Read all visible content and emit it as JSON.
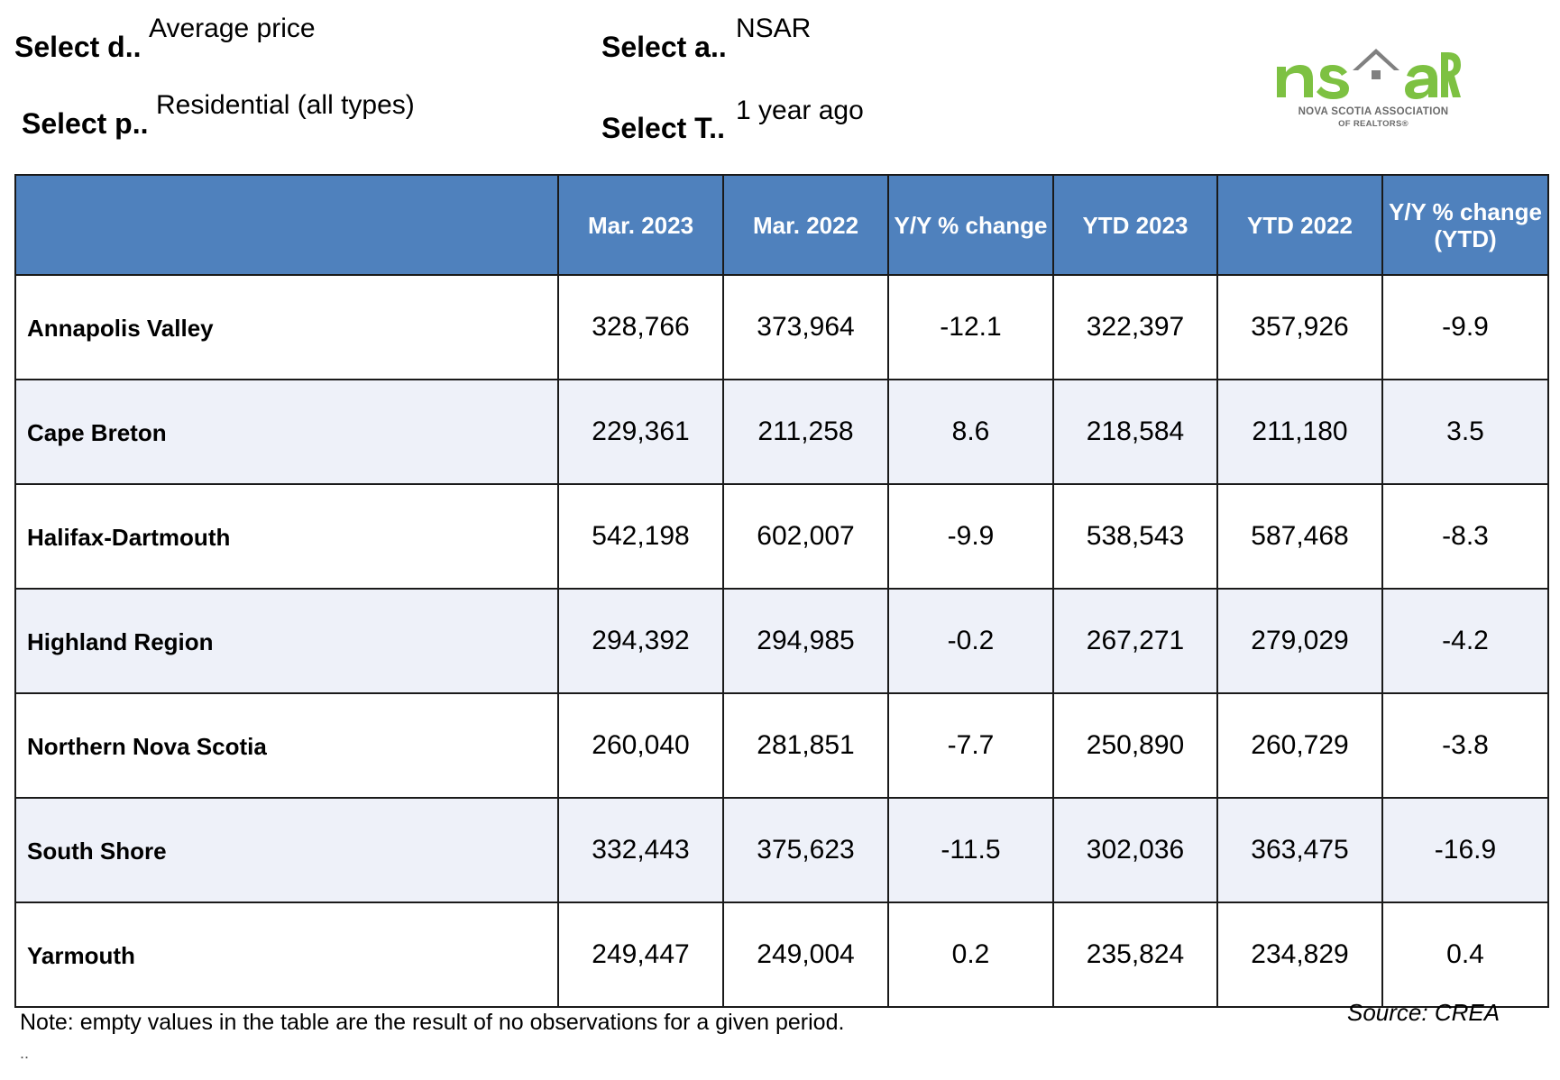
{
  "filters": [
    {
      "label": "Select d..",
      "value": "Average price"
    },
    {
      "label": "Select a..",
      "value": "NSAR"
    },
    {
      "label": "Select p..",
      "value": "Residential (all types)"
    },
    {
      "label": "Select T..",
      "value": "1 year ago"
    }
  ],
  "logo": {
    "word": "nsar",
    "subtitle_line1": "NOVA SCOTIA ASSOCIATION",
    "subtitle_line2": "OF REALTORS®"
  },
  "table": {
    "headers": [
      "",
      "Mar. 2023",
      "Mar. 2022",
      "Y/Y % change",
      "YTD 2023",
      "YTD 2022",
      "Y/Y % change (YTD)"
    ],
    "rows": [
      {
        "region": "Annapolis Valley",
        "cells": [
          "328,766",
          "373,964",
          "-12.1",
          "322,397",
          "357,926",
          "-9.9"
        ]
      },
      {
        "region": "Cape Breton",
        "cells": [
          "229,361",
          "211,258",
          "8.6",
          "218,584",
          "211,180",
          "3.5"
        ]
      },
      {
        "region": "Halifax-Dartmouth",
        "cells": [
          "542,198",
          "602,007",
          "-9.9",
          "538,543",
          "587,468",
          "-8.3"
        ]
      },
      {
        "region": "Highland Region",
        "cells": [
          "294,392",
          "294,985",
          "-0.2",
          "267,271",
          "279,029",
          "-4.2"
        ]
      },
      {
        "region": "Northern Nova Scotia",
        "cells": [
          "260,040",
          "281,851",
          "-7.7",
          "250,890",
          "260,729",
          "-3.8"
        ]
      },
      {
        "region": "South Shore",
        "cells": [
          "332,443",
          "375,623",
          "-11.5",
          "302,036",
          "363,475",
          "-16.9"
        ]
      },
      {
        "region": "Yarmouth",
        "cells": [
          "249,447",
          "249,004",
          "0.2",
          "235,824",
          "234,829",
          "0.4"
        ]
      }
    ]
  },
  "source": "Source: CREA",
  "note": "Note: empty values in the table are the result of no observations for a given period.",
  "trailing": "..",
  "colors": {
    "header_bg": "#4f81bd",
    "logo_green": "#7dc142",
    "logo_gray": "#808080"
  }
}
